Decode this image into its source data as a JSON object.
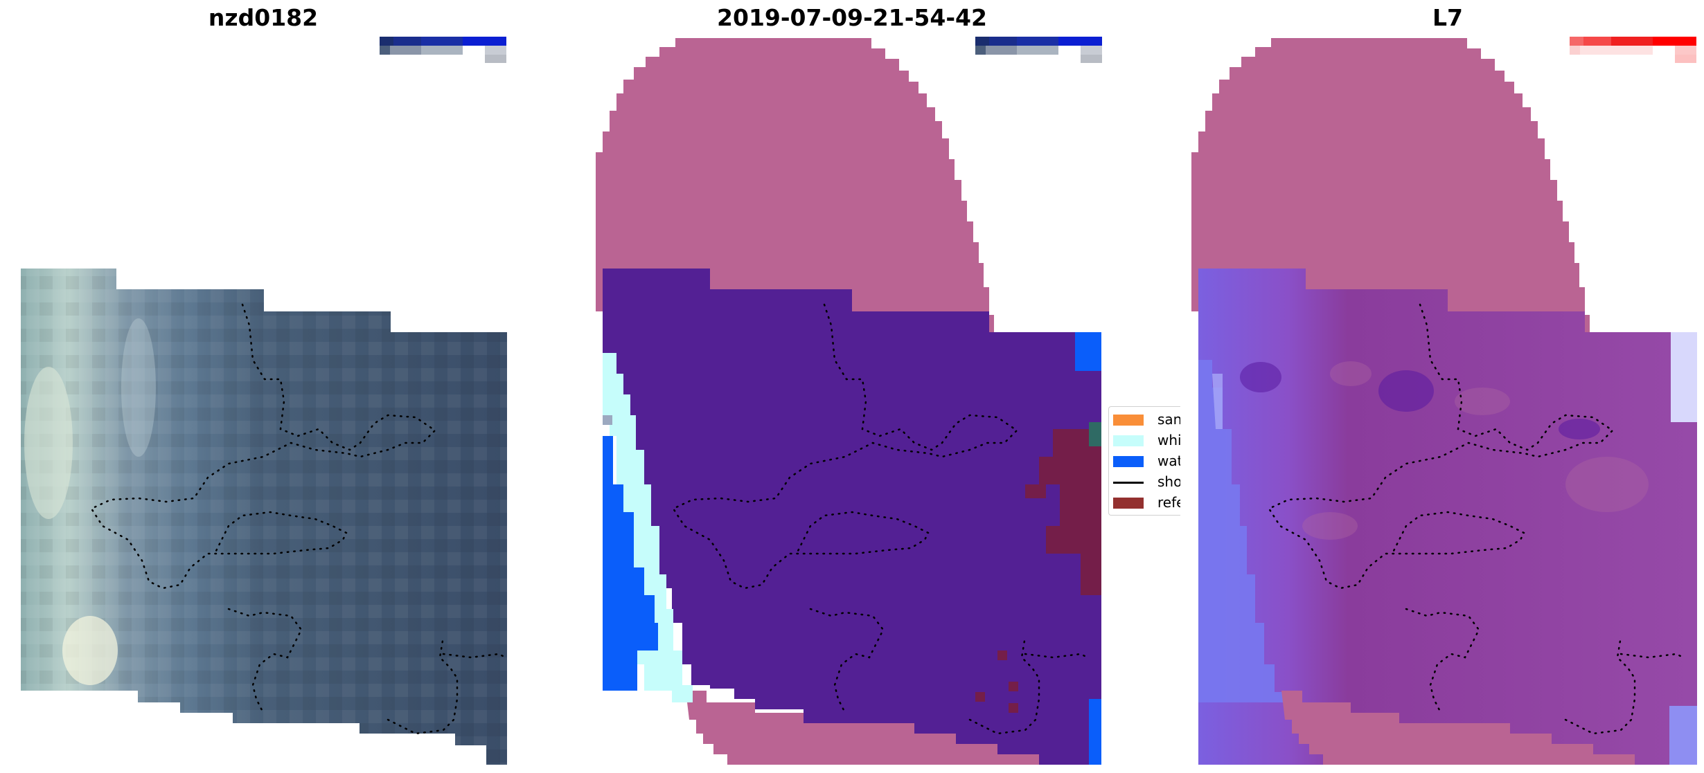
{
  "panels": [
    {
      "title": "nzd0182",
      "scale_bar": "blue"
    },
    {
      "title": "2019-07-09-21-54-42",
      "scale_bar": "blue"
    },
    {
      "title": "L7",
      "scale_bar": "red"
    }
  ],
  "legend": {
    "items": [
      {
        "label": "sand",
        "color": "#f98e38"
      },
      {
        "label": "whitewater",
        "color": "#c6fdfb"
      },
      {
        "label": "water",
        "color": "#0a5efa"
      },
      {
        "label": "shoreline",
        "color": "#000000"
      },
      {
        "label": "reference shoreline",
        "color": "#93302f"
      }
    ]
  },
  "colors": {
    "outside_mask": "#ba6493",
    "land_class": "#532094",
    "water_class": "#0a5efa",
    "whitewater_class": "#c6fdfb",
    "reference_class": "#7a1e3c",
    "image_base": "#3e5370",
    "mndwi_base": "#8a3c9c",
    "mndwi_water": "#7878f0"
  }
}
